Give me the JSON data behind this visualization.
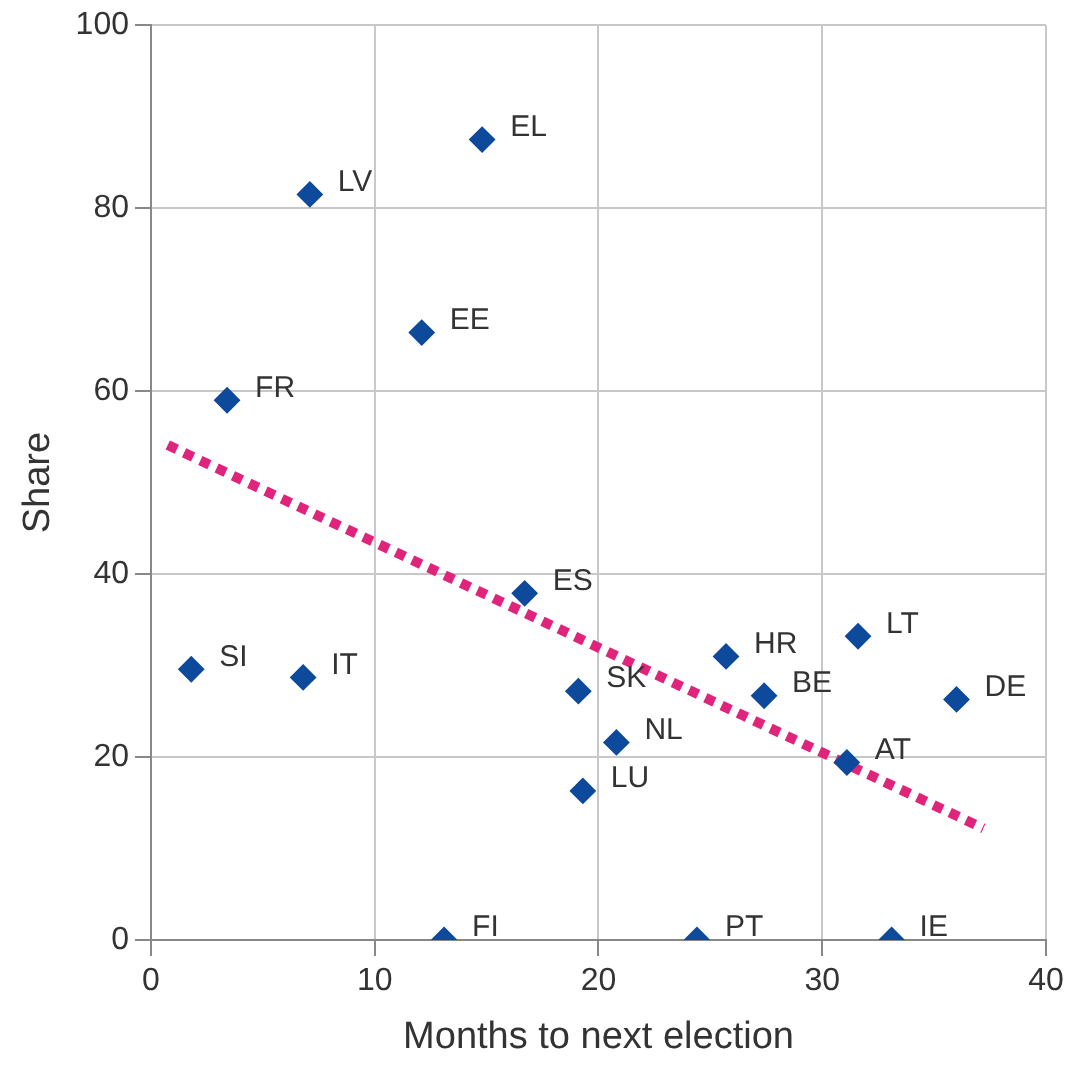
{
  "chart_data": {
    "type": "scatter",
    "xlabel": "Months to next election",
    "ylabel": "Share",
    "xlim": [
      0,
      40
    ],
    "xticks": [
      0,
      10,
      20,
      30,
      40
    ],
    "ylim": [
      0,
      100
    ],
    "yticks": [
      0,
      20,
      40,
      60,
      80,
      100
    ],
    "grid": true,
    "legend": false,
    "series": [
      {
        "marker": "diamond",
        "color": "#0d4a9c",
        "x": [
          14.8,
          7.1,
          12.1,
          3.4,
          16.7,
          1.8,
          6.8,
          25.7,
          31.6,
          19.1,
          27.4,
          36.0,
          31.1,
          20.8,
          19.3,
          13.1,
          24.4,
          33.1
        ],
        "values": [
          87.5,
          81.5,
          66.4,
          59.0,
          37.9,
          29.6,
          28.7,
          31.0,
          33.2,
          27.2,
          26.7,
          26.3,
          19.4,
          21.6,
          16.3,
          0,
          0,
          0
        ]
      },
      {
        "type": "line",
        "marker": "none",
        "color": "#e0247c",
        "line_style": "dotted",
        "x": [
          0.75,
          37.2
        ],
        "values": [
          54.1,
          12.2
        ]
      }
    ],
    "annotations": [
      {
        "text": "EL",
        "x": 14.8,
        "y": 87.5
      },
      {
        "text": "LV",
        "x": 7.1,
        "y": 81.5
      },
      {
        "text": "EE",
        "x": 12.1,
        "y": 66.4
      },
      {
        "text": "FR",
        "x": 3.4,
        "y": 59.0
      },
      {
        "text": "ES",
        "x": 16.7,
        "y": 37.9
      },
      {
        "text": "SI",
        "x": 1.8,
        "y": 29.6
      },
      {
        "text": "IT",
        "x": 6.8,
        "y": 28.7
      },
      {
        "text": "HR",
        "x": 25.7,
        "y": 31.0
      },
      {
        "text": "LT",
        "x": 31.6,
        "y": 33.2
      },
      {
        "text": "SK",
        "x": 19.1,
        "y": 27.2
      },
      {
        "text": "BE",
        "x": 27.4,
        "y": 26.7
      },
      {
        "text": "DE",
        "x": 36.0,
        "y": 26.3
      },
      {
        "text": "AT",
        "x": 31.1,
        "y": 19.4
      },
      {
        "text": "NL",
        "x": 20.8,
        "y": 21.6
      },
      {
        "text": "LU",
        "x": 19.3,
        "y": 16.3
      },
      {
        "text": "FI",
        "x": 13.1,
        "y": 0
      },
      {
        "text": "PT",
        "x": 24.4,
        "y": 0
      },
      {
        "text": "IE",
        "x": 33.1,
        "y": 0
      }
    ]
  }
}
